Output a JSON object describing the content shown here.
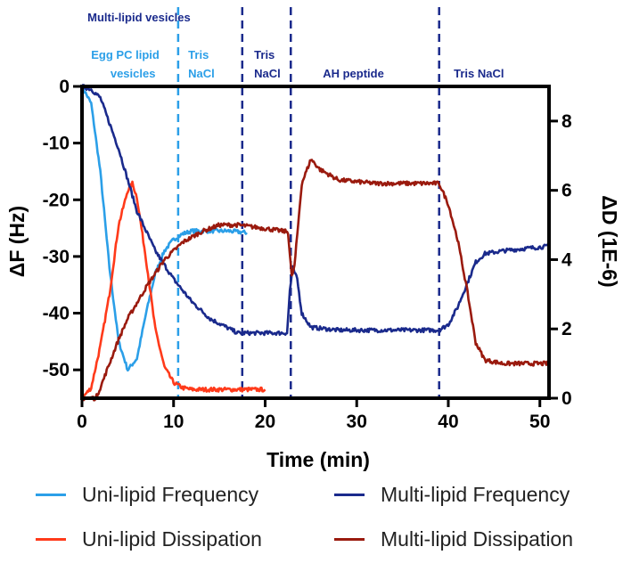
{
  "chart_data": {
    "type": "line",
    "xlabel": "Time (min)",
    "ylabel_left": "ΔF (Hz)",
    "ylabel_right": "ΔD (1E-6)",
    "xlim": [
      0,
      51
    ],
    "ylim_left": [
      -55,
      0
    ],
    "ylim_right": [
      0,
      9
    ],
    "x_ticks": [
      0,
      10,
      20,
      30,
      40,
      50
    ],
    "y_left_ticks": [
      0,
      -10,
      -20,
      -30,
      -40,
      -50
    ],
    "y_right_ticks": [
      0,
      2,
      4,
      6,
      8
    ],
    "x_tick_labels": [
      "0",
      "10",
      "20",
      "30",
      "40",
      "50"
    ],
    "y_left_tick_labels": [
      "0",
      "-10",
      "-20",
      "-30",
      "-40",
      "-50"
    ],
    "y_right_tick_labels": [
      "0",
      "2",
      "4",
      "6",
      "8"
    ],
    "grid": false,
    "phase_markers": [
      {
        "x": 10.5,
        "color": "#2b9fe8"
      },
      {
        "x": 17.5,
        "color": "#1a2a8c"
      },
      {
        "x": 22.8,
        "color": "#1a2a8c"
      },
      {
        "x": 39,
        "color": "#1a2a8c"
      }
    ],
    "annotations": [
      {
        "text": "Multi-lipid vesicles",
        "x": 0.6,
        "row": 1,
        "color": "#1a2a8c"
      },
      {
        "text": "Egg PC lipid",
        "x": 1.0,
        "row": 2,
        "color": "#2b9fe8"
      },
      {
        "text": "vesicles",
        "x": 3.1,
        "row": 3,
        "color": "#2b9fe8"
      },
      {
        "text": "Tris",
        "x": 11.6,
        "row": 2,
        "color": "#2b9fe8"
      },
      {
        "text": "NaCl",
        "x": 11.6,
        "row": 3,
        "color": "#2b9fe8"
      },
      {
        "text": "Tris",
        "x": 18.8,
        "row": 2,
        "color": "#1a2a8c"
      },
      {
        "text": "NaCl",
        "x": 18.8,
        "row": 3,
        "color": "#1a2a8c"
      },
      {
        "text": "AH peptide",
        "x": 26.3,
        "row": 3,
        "color": "#1a2a8c"
      },
      {
        "text": "Tris NaCl",
        "x": 40.6,
        "row": 3,
        "color": "#1a2a8c"
      }
    ],
    "series": [
      {
        "name": "Uni-lipid Frequency",
        "axis": "left",
        "color": "#2b9fe8",
        "x": [
          0,
          1,
          2,
          3,
          4,
          5,
          6,
          7,
          8,
          9,
          10,
          11,
          12,
          14,
          16,
          18
        ],
        "y": [
          0,
          -3,
          -15,
          -32,
          -45,
          -50,
          -48,
          -40,
          -33,
          -29,
          -27,
          -26,
          -25.5,
          -25.5,
          -25.5,
          -25.8
        ]
      },
      {
        "name": "Uni-lipid Dissipation",
        "axis": "right",
        "color": "#ff3a1a",
        "x": [
          0,
          1,
          2,
          3,
          4,
          5,
          5.5,
          6,
          7,
          8,
          9,
          10,
          11,
          12,
          14,
          16,
          18,
          20
        ],
        "y": [
          0,
          0.3,
          1.5,
          3.0,
          5.0,
          6.0,
          6.2,
          5.8,
          4.0,
          2.0,
          0.9,
          0.45,
          0.3,
          0.25,
          0.25,
          0.25,
          0.25,
          0.25
        ]
      },
      {
        "name": "Multi-lipid Frequency",
        "axis": "left",
        "color": "#1a2a8c",
        "x": [
          0,
          1,
          2,
          4,
          6,
          8,
          10,
          12,
          14,
          17,
          20,
          22.4,
          22.7,
          23,
          23.5,
          24,
          25,
          28,
          32,
          36,
          39,
          40,
          41,
          42,
          43,
          44,
          46,
          49,
          51
        ],
        "y": [
          0,
          -0.5,
          -2,
          -11,
          -22,
          -29,
          -34,
          -38,
          -41,
          -43.5,
          -43.5,
          -43.5,
          -36,
          -32,
          -34,
          -40,
          -42.5,
          -43,
          -43,
          -43,
          -43,
          -42,
          -39,
          -35,
          -31,
          -29.5,
          -29,
          -28.5,
          -28.2
        ]
      },
      {
        "name": "Multi-lipid Dissipation",
        "axis": "right",
        "color": "#9a1a0e",
        "x": [
          0,
          1.5,
          2,
          3,
          4,
          5,
          7,
          9,
          11,
          13,
          15,
          17,
          20,
          22.5,
          22.9,
          23.2,
          24,
          25,
          26,
          28,
          32,
          36,
          39,
          40,
          41,
          42,
          43,
          44,
          46,
          49,
          51
        ],
        "y": [
          0,
          0,
          0.3,
          1.0,
          1.7,
          2.3,
          3.2,
          4.0,
          4.5,
          4.8,
          5.0,
          5.0,
          4.9,
          4.8,
          3.5,
          3.8,
          6.2,
          6.9,
          6.6,
          6.3,
          6.2,
          6.2,
          6.2,
          5.6,
          4.6,
          3.2,
          1.6,
          1.1,
          1.0,
          1.0,
          1.0
        ]
      }
    ],
    "legend": [
      {
        "label": "Uni-lipid Frequency",
        "color": "#2b9fe8",
        "position": "bottom-left"
      },
      {
        "label": "Multi-lipid Frequency",
        "color": "#1a2a8c",
        "position": "bottom-right"
      },
      {
        "label": "Uni-lipid Dissipation",
        "color": "#ff3a1a",
        "position": "bottom-left"
      },
      {
        "label": "Multi-lipid Dissipation",
        "color": "#9a1a0e",
        "position": "bottom-right"
      }
    ]
  }
}
